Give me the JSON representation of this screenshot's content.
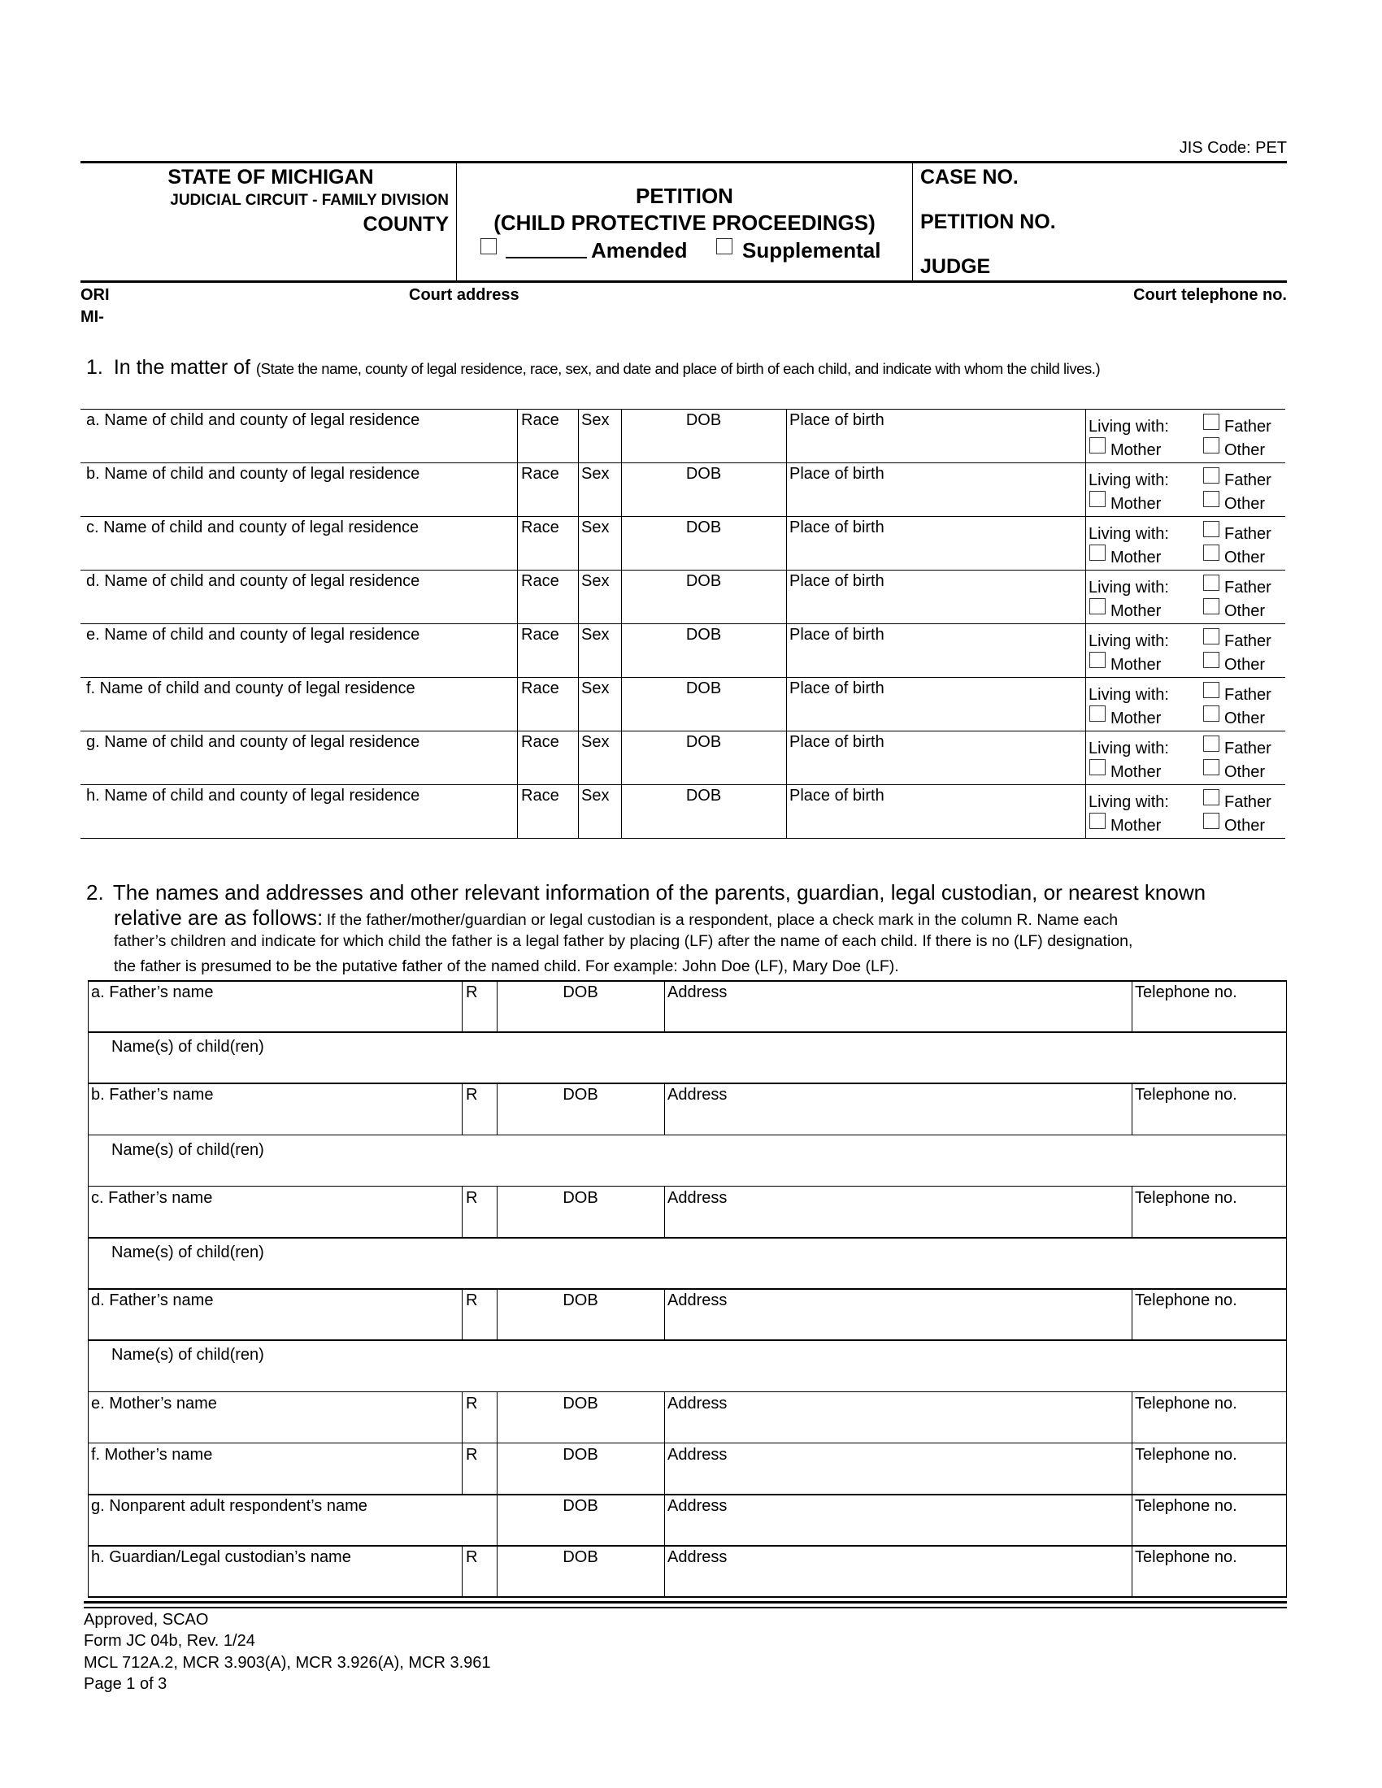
{
  "jis_code": "JIS Code: PET",
  "header": {
    "state": "STATE OF MICHIGAN",
    "circuit": "JUDICIAL CIRCUIT - FAMILY DIVISION",
    "county": "COUNTY",
    "title": "PETITION",
    "subtitle": "(CHILD PROTECTIVE PROCEEDINGS)",
    "amended_label": "Amended",
    "supplemental_label": "Supplemental",
    "case_no": "CASE NO.",
    "petition_no": "PETITION NO.",
    "judge": "JUDGE"
  },
  "court_info": {
    "ori": "ORI",
    "mi": "MI-",
    "court_address": "Court address",
    "court_telephone": "Court telephone no."
  },
  "section1": {
    "number": "1.",
    "lead": "In the matter of",
    "instruction": "(State the name, county of legal residence, race, sex, and date and place of birth of each child, and indicate with whom the child lives.)",
    "race": "Race",
    "sex": "Sex",
    "dob": "DOB",
    "place_of_birth": "Place of birth",
    "living_with": "Living with:",
    "father": "Father",
    "mother": "Mother",
    "other": "Other",
    "rows": [
      "a. Name of child and county of legal residence",
      "b. Name of child and county of legal residence",
      "c. Name of child and county of legal residence",
      "d. Name of child and county of legal residence",
      "e. Name of child and county of legal residence",
      "f. Name of child and county of legal residence",
      "g. Name of child and county of legal residence",
      "h. Name of child and county of legal residence"
    ]
  },
  "section2": {
    "number": "2.",
    "lead_line1": "The names and addresses and other relevant information of the parents, guardian, legal custodian, or nearest known",
    "lead_line2": "relative are as follows:",
    "instr_line1": "If the father/mother/guardian or legal custodian is a respondent, place a check mark in the column R. Name each",
    "instr_line2": "father’s children and indicate for which child the father is a legal father by placing (LF) after the name of each child. If there is no (LF) designation,",
    "instr_line3": "the father is presumed to be the putative father of the named child. For example: John Doe (LF), Mary Doe (LF).",
    "r": "R",
    "dob": "DOB",
    "address": "Address",
    "telephone": "Telephone no.",
    "children": "Name(s) of child(ren)",
    "rows": [
      {
        "label": "a. Father’s name",
        "r": true,
        "children": true
      },
      {
        "label": "b. Father’s name",
        "r": true,
        "children": true
      },
      {
        "label": "c. Father’s name",
        "r": true,
        "children": true
      },
      {
        "label": "d. Father’s name",
        "r": true,
        "children": true
      },
      {
        "label": "e. Mother’s name",
        "r": true,
        "children": false
      },
      {
        "label": "f. Mother’s name",
        "r": true,
        "children": false
      },
      {
        "label": "g. Nonparent adult respondent’s name",
        "r": false,
        "children": false
      },
      {
        "label": "h. Guardian/Legal custodian’s name",
        "r": true,
        "children": false
      }
    ]
  },
  "footer": {
    "approved": "Approved, SCAO",
    "form": "Form JC 04b, Rev. 1/24",
    "authority": "MCL 712A.2, MCR 3.903(A), MCR 3.926(A), MCR 3.961",
    "page": "Page 1 of 3"
  }
}
